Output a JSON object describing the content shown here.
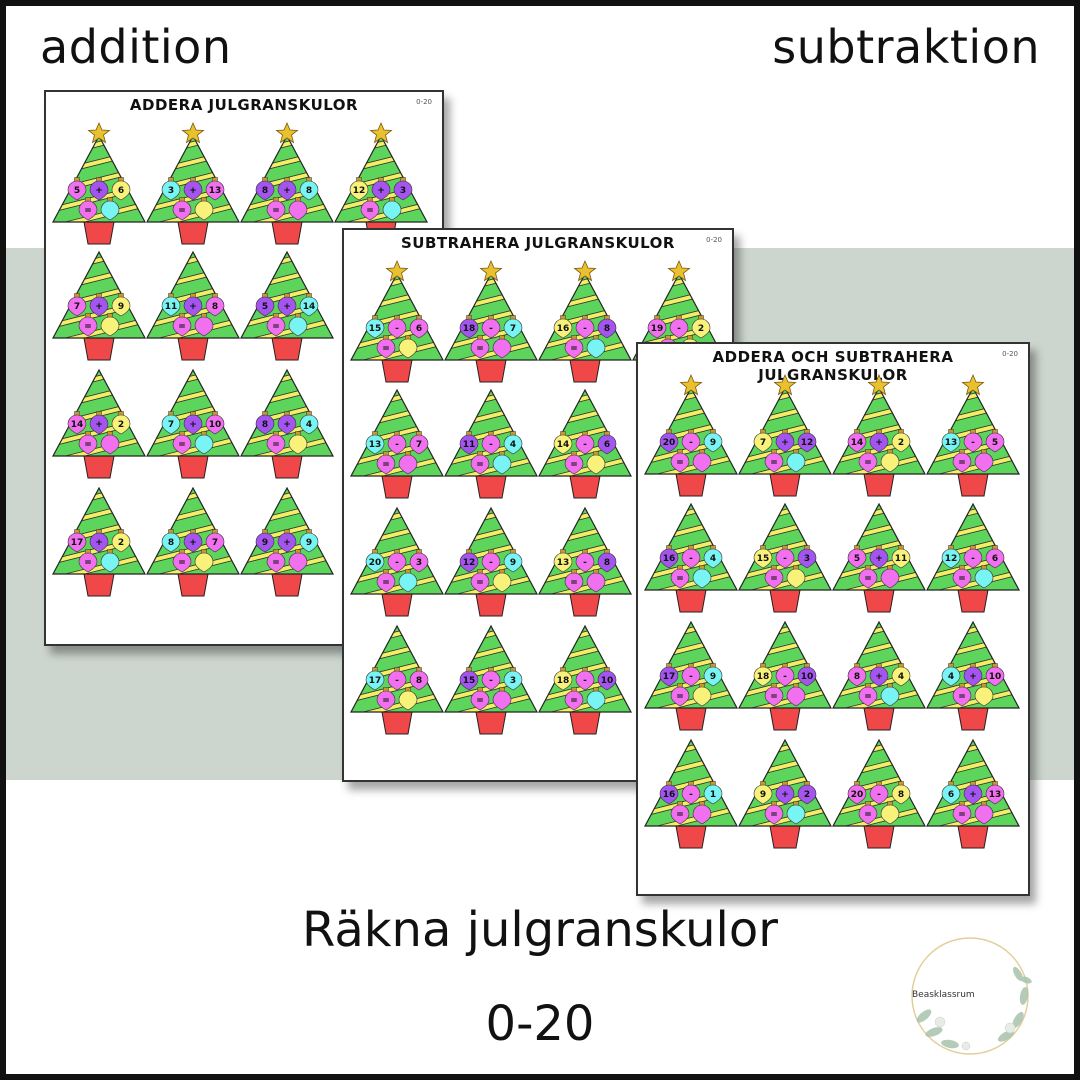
{
  "header": {
    "left_label": "addition",
    "right_label": "subtraktion"
  },
  "footer": {
    "title": "Räkna julgranskulor",
    "range": "0-20"
  },
  "logo": {
    "text": "Beasklassrum"
  },
  "colors": {
    "background_band": "#cdd5cf",
    "tree_green": "#5dd55d",
    "stripe_yellow": "#f2ee66",
    "pot_red": "#f04848",
    "star_gold": "#e8c030",
    "ball_pink": "#f070f0",
    "ball_purple": "#a455f0",
    "ball_cyan": "#78f4f4",
    "ball_yellow": "#f8f27a"
  },
  "sheets": [
    {
      "title": "ADDERA JULGRANSKULOR",
      "range": "0-20",
      "rows": [
        [
          {
            "a": "5",
            "op": "+",
            "b": "6"
          },
          {
            "a": "3",
            "op": "+",
            "b": "13"
          },
          {
            "a": "8",
            "op": "+",
            "b": "8"
          },
          {
            "a": "12",
            "op": "+",
            "b": "3"
          }
        ],
        [
          {
            "a": "7",
            "op": "+",
            "b": "9"
          },
          {
            "a": "11",
            "op": "+",
            "b": "8"
          },
          {
            "a": "5",
            "op": "+",
            "b": "14"
          }
        ],
        [
          {
            "a": "14",
            "op": "+",
            "b": "2"
          },
          {
            "a": "7",
            "op": "+",
            "b": "10"
          },
          {
            "a": "8",
            "op": "+",
            "b": "4"
          }
        ],
        [
          {
            "a": "17",
            "op": "+",
            "b": "2"
          },
          {
            "a": "8",
            "op": "+",
            "b": "7"
          },
          {
            "a": "9",
            "op": "+",
            "b": "9"
          }
        ]
      ]
    },
    {
      "title": "SUBTRAHERA JULGRANSKULOR",
      "range": "0-20",
      "rows": [
        [
          {
            "a": "15",
            "op": "-",
            "b": "6"
          },
          {
            "a": "18",
            "op": "-",
            "b": "7"
          },
          {
            "a": "16",
            "op": "-",
            "b": "8"
          },
          {
            "a": "19",
            "op": "-",
            "b": "2"
          }
        ],
        [
          {
            "a": "13",
            "op": "-",
            "b": "7"
          },
          {
            "a": "11",
            "op": "-",
            "b": "4"
          },
          {
            "a": "14",
            "op": "-",
            "b": "6"
          }
        ],
        [
          {
            "a": "20",
            "op": "-",
            "b": "3"
          },
          {
            "a": "12",
            "op": "-",
            "b": "9"
          },
          {
            "a": "13",
            "op": "-",
            "b": "8"
          }
        ],
        [
          {
            "a": "17",
            "op": "-",
            "b": "8"
          },
          {
            "a": "15",
            "op": "-",
            "b": "3"
          },
          {
            "a": "18",
            "op": "-",
            "b": "10"
          }
        ]
      ]
    },
    {
      "title": "ADDERA OCH SUBTRAHERA JULGRANSKULOR",
      "range": "0-20",
      "rows": [
        [
          {
            "a": "20",
            "op": "-",
            "b": "9"
          },
          {
            "a": "7",
            "op": "+",
            "b": "12"
          },
          {
            "a": "14",
            "op": "+",
            "b": "2"
          },
          {
            "a": "13",
            "op": "-",
            "b": "5"
          }
        ],
        [
          {
            "a": "16",
            "op": "-",
            "b": "4"
          },
          {
            "a": "15",
            "op": "-",
            "b": "3"
          },
          {
            "a": "5",
            "op": "+",
            "b": "11"
          },
          {
            "a": "12",
            "op": "-",
            "b": "6"
          }
        ],
        [
          {
            "a": "17",
            "op": "-",
            "b": "9"
          },
          {
            "a": "18",
            "op": "-",
            "b": "10"
          },
          {
            "a": "8",
            "op": "+",
            "b": "4"
          },
          {
            "a": "4",
            "op": "+",
            "b": "10"
          }
        ],
        [
          {
            "a": "16",
            "op": "-",
            "b": "1"
          },
          {
            "a": "9",
            "op": "+",
            "b": "2"
          },
          {
            "a": "20",
            "op": "-",
            "b": "8"
          },
          {
            "a": "6",
            "op": "+",
            "b": "13"
          }
        ]
      ]
    }
  ],
  "equals_sign": "="
}
